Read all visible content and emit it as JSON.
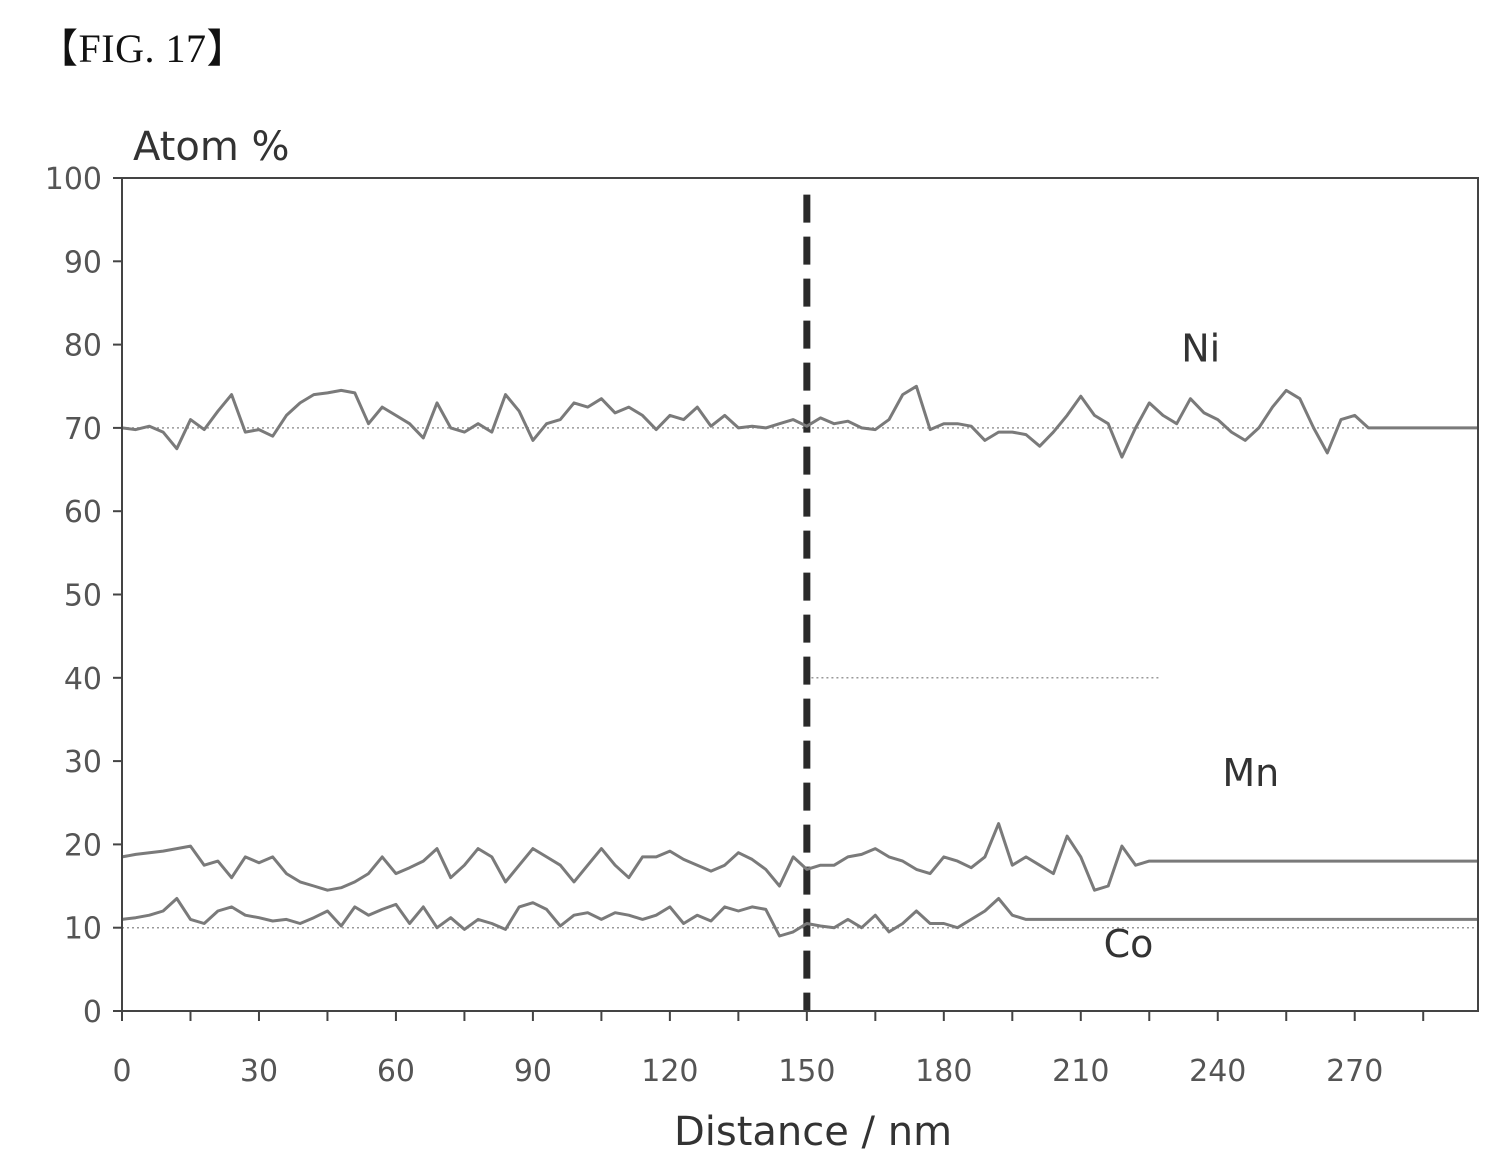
{
  "figure_label": "【FIG. 17】",
  "chart_data": {
    "type": "line",
    "title": "",
    "xlabel": "Distance / nm",
    "ylabel": "Atom %",
    "xlim": [
      0,
      297
    ],
    "ylim": [
      0,
      100
    ],
    "x_ticks": [
      0,
      30,
      60,
      90,
      120,
      150,
      180,
      210,
      240,
      270
    ],
    "y_ticks": [
      0,
      10,
      20,
      30,
      40,
      50,
      60,
      70,
      80,
      90,
      100
    ],
    "grid": false,
    "legend": "none",
    "reference_lines": [
      {
        "orientation": "horizontal",
        "y": 70,
        "style": "dotted",
        "x_range": [
          0,
          297
        ]
      },
      {
        "orientation": "horizontal",
        "y": 10,
        "style": "dotted",
        "x_range": [
          0,
          297
        ]
      },
      {
        "orientation": "horizontal",
        "y": 40,
        "style": "dotted",
        "x_range": [
          151,
          227
        ]
      },
      {
        "orientation": "vertical",
        "x": 150,
        "style": "dashed"
      }
    ],
    "x": [
      0,
      3,
      6,
      9,
      12,
      15,
      18,
      21,
      24,
      27,
      30,
      33,
      36,
      39,
      42,
      45,
      48,
      51,
      54,
      57,
      60,
      63,
      66,
      69,
      72,
      75,
      78,
      81,
      84,
      87,
      90,
      93,
      96,
      99,
      102,
      105,
      108,
      111,
      114,
      117,
      120,
      123,
      126,
      129,
      132,
      135,
      138,
      141,
      144,
      147,
      150,
      153,
      156,
      159,
      162,
      165,
      168,
      171,
      174,
      177,
      180,
      183,
      186,
      189,
      192,
      195,
      198,
      201,
      204,
      207,
      210,
      213,
      216,
      219,
      222,
      225,
      228,
      231,
      234,
      237,
      240,
      243,
      246,
      249,
      252,
      255,
      258,
      261,
      264,
      267,
      270,
      273,
      276,
      279,
      282,
      285,
      288,
      291,
      294,
      297
    ],
    "series": [
      {
        "name": "Ni",
        "label_position": [
          232,
          78
        ],
        "values": [
          70,
          69.8,
          70.2,
          69.5,
          67.5,
          71,
          69.8,
          72,
          74,
          69.5,
          69.8,
          69,
          71.5,
          73,
          74,
          74.2,
          74.5,
          74.2,
          70.5,
          72.5,
          71.5,
          70.5,
          68.8,
          73,
          70,
          69.5,
          70.5,
          69.5,
          74,
          72,
          68.5,
          70.5,
          71,
          73,
          72.5,
          73.5,
          71.8,
          72.5,
          71.5,
          69.8,
          71.5,
          71,
          72.5,
          70.2,
          71.5,
          70,
          70.2,
          70,
          70.5,
          71,
          70.2,
          71.2,
          70.5,
          70.8,
          70,
          69.8,
          71,
          74,
          75,
          69.8,
          70.5,
          70.5,
          70.2,
          68.5,
          69.5,
          69.5,
          69.2,
          67.8,
          69.5,
          71.5,
          73.8,
          71.5,
          70.5,
          66.5,
          70,
          73,
          71.5,
          70.5,
          73.5,
          71.8,
          71,
          69.5,
          68.5,
          70,
          72.5,
          74.5,
          73.5,
          70,
          67,
          71,
          71.5,
          70,
          70,
          70,
          70,
          70,
          70,
          70,
          70,
          70
        ]
      },
      {
        "name": "Mn",
        "label_position": [
          241,
          27
        ],
        "values": [
          18.5,
          18.8,
          19,
          19.2,
          19.5,
          19.8,
          17.5,
          18,
          16,
          18.5,
          17.8,
          18.5,
          16.5,
          15.5,
          15,
          14.5,
          14.8,
          15.5,
          16.5,
          18.5,
          16.5,
          17.2,
          18,
          19.5,
          16,
          17.5,
          19.5,
          18.5,
          15.5,
          17.5,
          19.5,
          18.5,
          17.5,
          15.5,
          17.5,
          19.5,
          17.5,
          16,
          18.5,
          18.5,
          19.2,
          18.2,
          17.5,
          16.8,
          17.5,
          19,
          18.2,
          17,
          15,
          18.5,
          17,
          17.5,
          17.5,
          18.5,
          18.8,
          19.5,
          18.5,
          18,
          17,
          16.5,
          18.5,
          18,
          17.2,
          18.5,
          22.5,
          17.5,
          18.5,
          17.5,
          16.5,
          21,
          18.5,
          14.5,
          15,
          19.8,
          17.5,
          18,
          18,
          18,
          18,
          18,
          18,
          18,
          18,
          18,
          18,
          18,
          18,
          18,
          18,
          18,
          18,
          18,
          18,
          18,
          18,
          18,
          18,
          18,
          18,
          18
        ]
      },
      {
        "name": "Co",
        "label_position": [
          215,
          6.5
        ],
        "values": [
          11,
          11.2,
          11.5,
          12,
          13.5,
          11,
          10.5,
          12,
          12.5,
          11.5,
          11.2,
          10.8,
          11,
          10.5,
          11.2,
          12,
          10.2,
          12.5,
          11.5,
          12.2,
          12.8,
          10.5,
          12.5,
          10,
          11.2,
          9.8,
          11,
          10.5,
          9.8,
          12.5,
          13,
          12.2,
          10.2,
          11.5,
          11.8,
          11,
          11.8,
          11.5,
          11,
          11.5,
          12.5,
          10.5,
          11.5,
          10.8,
          12.5,
          12,
          12.5,
          12.2,
          9,
          9.5,
          10.5,
          10.2,
          10,
          11,
          10,
          11.5,
          9.5,
          10.5,
          12,
          10.5,
          10.5,
          10,
          11,
          12,
          13.5,
          11.5,
          11,
          11,
          11,
          11,
          11,
          11,
          11,
          11,
          11,
          11,
          11,
          11,
          11,
          11,
          11,
          11,
          11,
          11,
          11,
          11,
          11,
          11,
          11,
          11,
          11,
          11,
          11,
          11,
          11,
          11,
          11,
          11,
          11,
          11
        ]
      }
    ]
  }
}
